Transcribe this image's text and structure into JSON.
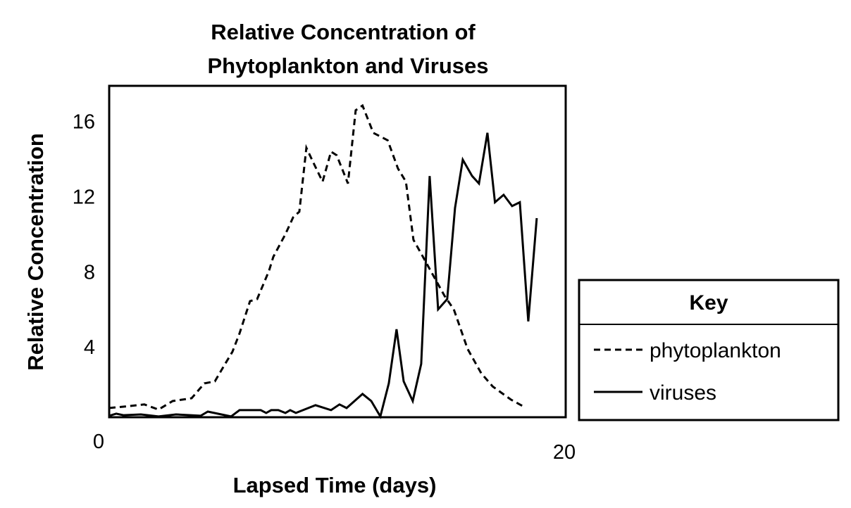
{
  "chart_data": {
    "type": "line",
    "title": [
      "Relative Concentration of",
      "Phytoplankton and Viruses"
    ],
    "xlabel": "Lapsed Time (days)",
    "ylabel": "Relative Concentration",
    "xlim": [
      0,
      20
    ],
    "ylim": [
      0.26,
      17.9
    ],
    "x_ticks": [
      {
        "value": 0,
        "label": "0"
      },
      {
        "value": 20,
        "label": "20"
      }
    ],
    "y_ticks": [
      {
        "value": 4,
        "label": "4"
      },
      {
        "value": 8,
        "label": "8"
      },
      {
        "value": 12,
        "label": "12"
      },
      {
        "value": 16,
        "label": "16"
      }
    ],
    "grid": false,
    "legend": {
      "title": "Key",
      "placement": "right"
    },
    "series": [
      {
        "name": "phytoplankton",
        "style": "dashed",
        "color": "#000000",
        "points": [
          [
            0,
            0.75
          ],
          [
            0.62,
            0.82
          ],
          [
            1.54,
            0.94
          ],
          [
            2.16,
            0.67
          ],
          [
            2.78,
            1.12
          ],
          [
            3.61,
            1.27
          ],
          [
            4.17,
            2.06
          ],
          [
            4.63,
            2.17
          ],
          [
            5.03,
            3.0
          ],
          [
            5.4,
            3.75
          ],
          [
            5.71,
            4.72
          ],
          [
            6.17,
            6.44
          ],
          [
            6.48,
            6.55
          ],
          [
            7.0,
            8.05
          ],
          [
            7.19,
            8.8
          ],
          [
            7.72,
            10.0
          ],
          [
            8.06,
            10.9
          ],
          [
            8.33,
            11.2
          ],
          [
            8.64,
            14.6
          ],
          [
            8.95,
            13.8
          ],
          [
            9.35,
            12.8
          ],
          [
            9.72,
            14.4
          ],
          [
            9.97,
            14.2
          ],
          [
            10.46,
            12.7
          ],
          [
            10.8,
            16.6
          ],
          [
            11.1,
            16.85
          ],
          [
            11.57,
            15.4
          ],
          [
            12.2,
            15.0
          ],
          [
            12.65,
            13.5
          ],
          [
            13.0,
            12.8
          ],
          [
            13.33,
            9.7
          ],
          [
            13.7,
            8.9
          ],
          [
            14.2,
            7.8
          ],
          [
            14.7,
            6.7
          ],
          [
            15.1,
            6.0
          ],
          [
            15.7,
            3.9
          ],
          [
            16.3,
            2.6
          ],
          [
            16.8,
            1.9
          ],
          [
            17.6,
            1.2
          ],
          [
            18.2,
            0.8
          ]
        ]
      },
      {
        "name": "viruses",
        "style": "solid",
        "color": "#000000",
        "points": [
          [
            0,
            0.34
          ],
          [
            0.31,
            0.45
          ],
          [
            0.62,
            0.37
          ],
          [
            1.39,
            0.41
          ],
          [
            2.16,
            0.3
          ],
          [
            2.93,
            0.41
          ],
          [
            4.01,
            0.34
          ],
          [
            4.32,
            0.56
          ],
          [
            5.34,
            0.3
          ],
          [
            5.71,
            0.64
          ],
          [
            6.64,
            0.64
          ],
          [
            6.88,
            0.49
          ],
          [
            7.1,
            0.64
          ],
          [
            7.41,
            0.64
          ],
          [
            7.72,
            0.49
          ],
          [
            7.93,
            0.64
          ],
          [
            8.18,
            0.49
          ],
          [
            9.04,
            0.9
          ],
          [
            9.72,
            0.64
          ],
          [
            10.09,
            0.94
          ],
          [
            10.4,
            0.75
          ],
          [
            11.1,
            1.5
          ],
          [
            11.48,
            1.12
          ],
          [
            11.88,
            0.3
          ],
          [
            12.25,
            2.06
          ],
          [
            12.59,
            4.94
          ],
          [
            12.9,
            2.17
          ],
          [
            13.3,
            1.12
          ],
          [
            13.67,
            3.1
          ],
          [
            14.04,
            13.1
          ],
          [
            14.41,
            6.0
          ],
          [
            14.81,
            6.55
          ],
          [
            15.15,
            11.4
          ],
          [
            15.49,
            13.97
          ],
          [
            15.9,
            13.1
          ],
          [
            16.2,
            12.7
          ],
          [
            16.57,
            15.4
          ],
          [
            16.9,
            11.7
          ],
          [
            17.28,
            12.1
          ],
          [
            17.65,
            11.5
          ],
          [
            17.99,
            11.7
          ],
          [
            18.36,
            5.36
          ],
          [
            18.73,
            10.86
          ]
        ]
      }
    ]
  }
}
